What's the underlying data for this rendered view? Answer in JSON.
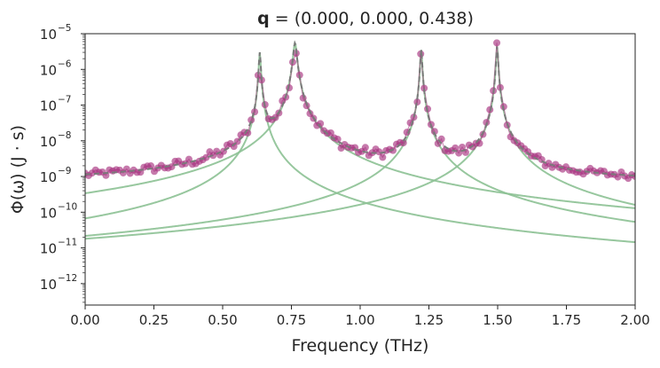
{
  "chart_data": {
    "type": "line",
    "title": {
      "q_label": "q",
      "rest": " = (0.000, 0.000, 0.438)"
    },
    "xlabel": "Frequency (THz)",
    "ylabel": "Φ(ω) (J · s)",
    "xlim": [
      0.0,
      2.0
    ],
    "ylim_log10": [
      -12.6,
      -5.0
    ],
    "y_scale": "log",
    "grid": false,
    "x_ticks": [
      "0.00",
      "0.25",
      "0.50",
      "0.75",
      "1.00",
      "1.25",
      "1.50",
      "1.75",
      "2.00"
    ],
    "y_ticks": [
      {
        "base": "10",
        "exp": "−5",
        "value": 1e-05
      },
      {
        "base": "10",
        "exp": "−6",
        "value": 1e-06
      },
      {
        "base": "10",
        "exp": "−7",
        "value": 1e-07
      },
      {
        "base": "10",
        "exp": "−8",
        "value": 1e-08
      },
      {
        "base": "10",
        "exp": "−9",
        "value": 1e-09
      },
      {
        "base": "10",
        "exp": "−10",
        "value": 1e-10
      },
      {
        "base": "10",
        "exp": "−11",
        "value": 1e-11
      },
      {
        "base": "10",
        "exp": "−12",
        "value": 1e-12
      }
    ],
    "colors": {
      "data": "#a8337f",
      "fit": "#7a7a7a",
      "components": "#8cc194"
    },
    "component_peaks": [
      {
        "center": 0.635,
        "peak": 3e-06,
        "gamma": 0.0015
      },
      {
        "center": 0.763,
        "peak": 5.5e-06,
        "gamma": 0.003
      },
      {
        "center": 1.222,
        "peak": 3.6e-06,
        "gamma": 0.0015
      },
      {
        "center": 1.498,
        "peak": 4.5e-06,
        "gamma": 0.0015
      }
    ],
    "measured_points": {
      "x_start": 0.0,
      "x_end": 2.0,
      "count": 160,
      "baseline": 5e-10,
      "scatter_log10": 0.15
    }
  }
}
